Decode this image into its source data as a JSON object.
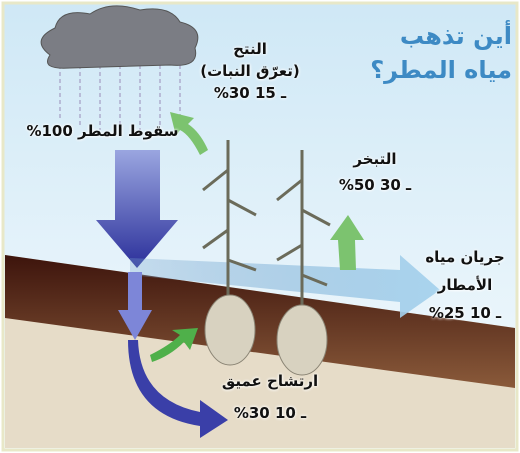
{
  "title": [
    "أين تذهب",
    "مياه المطر؟"
  ],
  "rainfall": "سقوط المطر 100%",
  "transpiration": {
    "label": "النتح",
    "sublabel": "(تعرّق النبات)",
    "range": "%30 ـ 15"
  },
  "evaporation": {
    "label": "التبخر",
    "range": "%50 ـ 30"
  },
  "runoff": {
    "label": [
      "جريان مياه",
      "الأمطار"
    ],
    "range": "%25 ـ 10"
  },
  "deep_percolation": {
    "label": "ارتشاح عميق",
    "range": "%30 ـ 10"
  }
}
